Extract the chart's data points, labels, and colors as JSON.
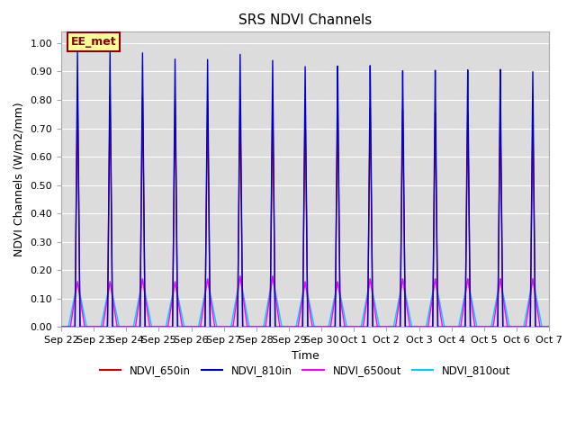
{
  "title": "SRS NDVI Channels",
  "xlabel": "Time",
  "ylabel": "NDVI Channels (W/m2/mm)",
  "ylim": [
    0.0,
    1.04
  ],
  "background_color": "#dcdcdc",
  "annotation_text": "EE_met",
  "annotation_bg": "#ffff99",
  "annotation_border": "#8b0000",
  "tick_labels": [
    "Sep 22",
    "Sep 23",
    "Sep 24",
    "Sep 25",
    "Sep 26",
    "Sep 27",
    "Sep 28",
    "Sep 29",
    "Sep 30",
    "Oct 1",
    "Oct 2",
    "Oct 3",
    "Oct 4",
    "Oct 5",
    "Oct 6",
    "Oct 7"
  ],
  "series": {
    "NDVI_650in": {
      "color": "#cc0000",
      "lw": 1.0
    },
    "NDVI_810in": {
      "color": "#0000cc",
      "lw": 1.0
    },
    "NDVI_650out": {
      "color": "#ff00ff",
      "lw": 1.0
    },
    "NDVI_810out": {
      "color": "#00ccff",
      "lw": 1.0
    }
  },
  "peaks_650in": [
    0.82,
    0.82,
    0.82,
    0.8,
    0.8,
    0.81,
    0.8,
    0.79,
    0.79,
    0.78,
    0.77,
    0.76,
    0.76,
    0.76,
    0.75
  ],
  "peaks_810in": [
    0.97,
    0.97,
    0.97,
    0.95,
    0.95,
    0.97,
    0.95,
    0.93,
    0.93,
    0.93,
    0.91,
    0.91,
    0.91,
    0.91,
    0.9
  ],
  "peaks_650out": [
    0.16,
    0.16,
    0.17,
    0.16,
    0.17,
    0.18,
    0.18,
    0.16,
    0.16,
    0.17,
    0.17,
    0.17,
    0.17,
    0.17,
    0.17
  ],
  "peaks_810out": [
    0.16,
    0.16,
    0.17,
    0.16,
    0.17,
    0.18,
    0.18,
    0.16,
    0.16,
    0.17,
    0.17,
    0.17,
    0.17,
    0.17,
    0.17
  ],
  "n_days": 15,
  "pts_per_day": 500
}
